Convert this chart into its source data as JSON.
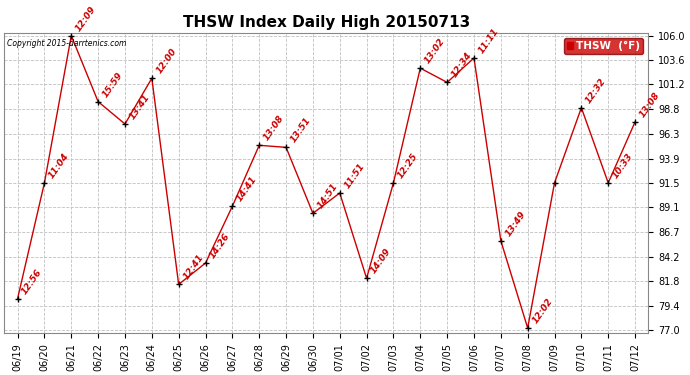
{
  "title": "THSW Index Daily High 20150713",
  "copyright": "Copyright 2015-darrtenics.com",
  "legend_label": "THSW  (°F)",
  "x_labels": [
    "06/19",
    "06/20",
    "06/21",
    "06/22",
    "06/23",
    "06/24",
    "06/25",
    "06/26",
    "06/27",
    "06/28",
    "06/29",
    "06/30",
    "07/01",
    "07/02",
    "07/03",
    "07/04",
    "07/05",
    "07/06",
    "07/07",
    "07/08",
    "07/09",
    "07/10",
    "07/11",
    "07/12"
  ],
  "y_values": [
    80.1,
    91.5,
    106.0,
    99.5,
    97.3,
    101.8,
    81.5,
    83.6,
    89.2,
    95.2,
    95.0,
    88.5,
    90.5,
    82.1,
    91.5,
    102.8,
    101.4,
    103.8,
    85.8,
    77.2,
    91.5,
    98.9,
    91.5,
    97.5
  ],
  "time_labels": [
    "12:56",
    "11:04",
    "12:09",
    "15:59",
    "13:41",
    "12:00",
    "12:41",
    "14:26",
    "14:41",
    "13:08",
    "13:51",
    "14:51",
    "11:51",
    "14:09",
    "12:25",
    "13:02",
    "12:34",
    "11:11",
    "13:49",
    "12:02",
    "",
    "12:32",
    "10:33",
    "13:08"
  ],
  "y_ticks": [
    77.0,
    79.4,
    81.8,
    84.2,
    86.7,
    89.1,
    91.5,
    93.9,
    96.3,
    98.8,
    101.2,
    103.6,
    106.0
  ],
  "y_min": 77.0,
  "y_max": 106.0,
  "line_color": "#cc0000",
  "marker_color": "#000000",
  "background_color": "#ffffff",
  "grid_color": "#c0c0c0",
  "title_fontsize": 11,
  "tick_fontsize": 7,
  "label_fontsize": 6.5
}
